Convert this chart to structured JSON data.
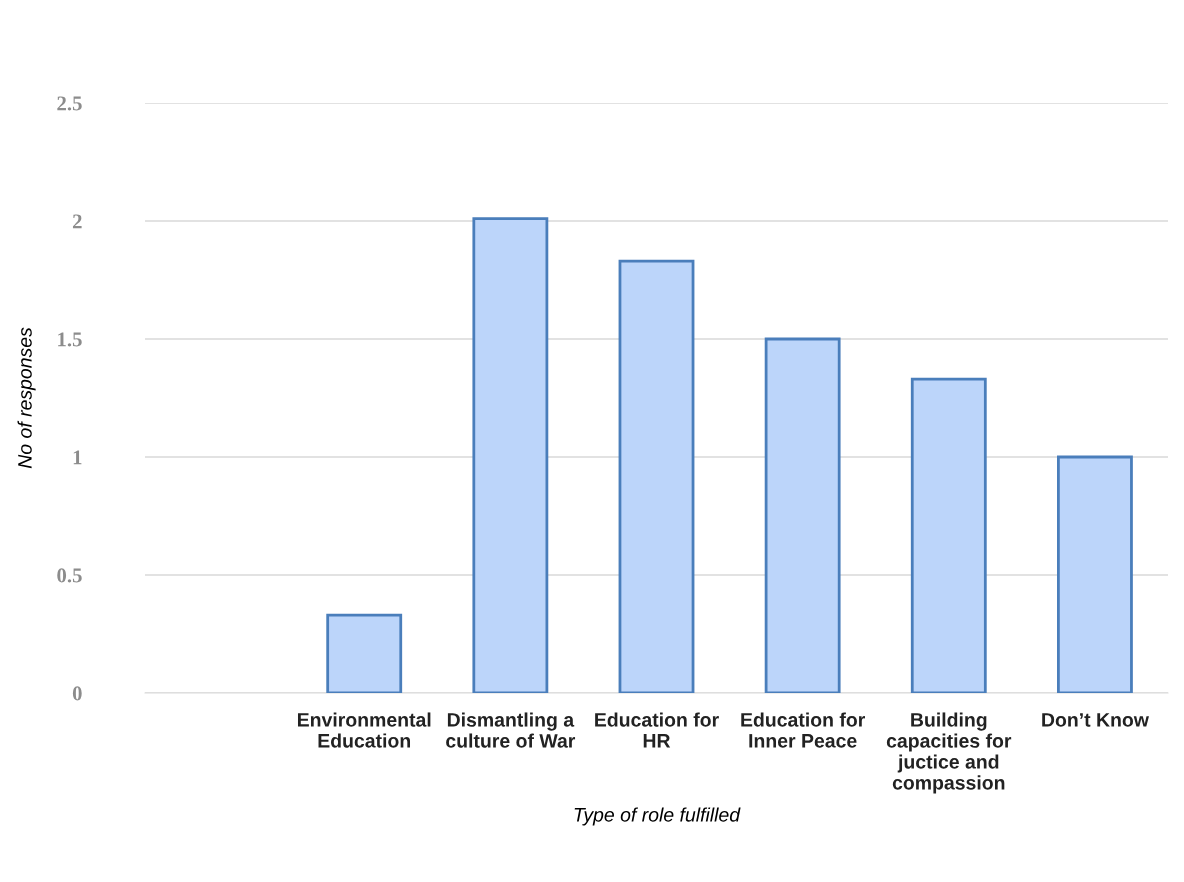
{
  "chart_data": {
    "type": "bar",
    "xlabel": "Type of role fulfilled",
    "ylabel": "No of responses",
    "categories": [
      null,
      "Environmental\nEducation",
      "Dismantling a\nculture of War",
      "Education for\nHR",
      "Education for\nInner Peace",
      "Building\ncapacities for\njuctice and\ncompassion",
      "Don’t Know"
    ],
    "values": [
      null,
      0.33,
      2.01,
      1.83,
      1.5,
      1.33,
      1.0
    ],
    "color": "#bcd5fa",
    "ylim": [
      0,
      2.5
    ],
    "yticks": [
      0,
      0.5,
      1,
      1.5,
      2,
      2.5
    ],
    "grid": "y",
    "legend": false
  }
}
